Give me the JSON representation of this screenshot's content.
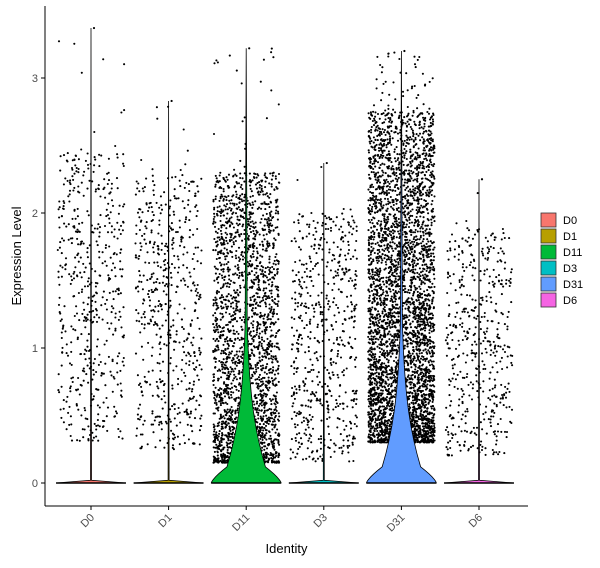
{
  "chart_data": {
    "type": "violin",
    "title": "",
    "xlabel": "Identity",
    "ylabel": "Expression Level",
    "ylim": [
      -0.18,
      3.45
    ],
    "yticks": [
      0,
      1,
      2,
      3
    ],
    "grid": false,
    "legend_position": "right",
    "categories": [
      "D0",
      "D1",
      "D11",
      "D3",
      "D31",
      "D6"
    ],
    "series": [
      {
        "name": "D0",
        "color": "#F8766D",
        "max": 3.37,
        "points_nonzero": 520,
        "upper_band": 2.45,
        "lower_band": 0.3,
        "violin_zero_halfwidth": 0.45,
        "zero_peak_halfwidth": 0.45
      },
      {
        "name": "D1",
        "color": "#B79F00",
        "max": 2.83,
        "points_nonzero": 560,
        "upper_band": 2.3,
        "lower_band": 0.25,
        "violin_zero_halfwidth": 0.45,
        "zero_peak_halfwidth": 0.45
      },
      {
        "name": "D11",
        "color": "#00BA38",
        "max": 3.22,
        "points_nonzero": 2400,
        "upper_band": 2.3,
        "lower_band": 0.15,
        "violin_zero_halfwidth": 0.45,
        "zero_peak_halfwidth": 0.45
      },
      {
        "name": "D3",
        "color": "#00BFC4",
        "max": 2.37,
        "points_nonzero": 600,
        "upper_band": 2.0,
        "lower_band": 0.15,
        "violin_zero_halfwidth": 0.45,
        "zero_peak_halfwidth": 0.45
      },
      {
        "name": "D31",
        "color": "#619CFF",
        "max": 3.2,
        "points_nonzero": 4200,
        "upper_band": 2.75,
        "lower_band": 0.3,
        "violin_zero_halfwidth": 0.45,
        "zero_peak_halfwidth": 0.45
      },
      {
        "name": "D6",
        "color": "#F564E3",
        "max": 2.25,
        "points_nonzero": 480,
        "upper_band": 1.9,
        "lower_band": 0.2,
        "violin_zero_halfwidth": 0.45,
        "zero_peak_halfwidth": 0.45
      }
    ]
  }
}
